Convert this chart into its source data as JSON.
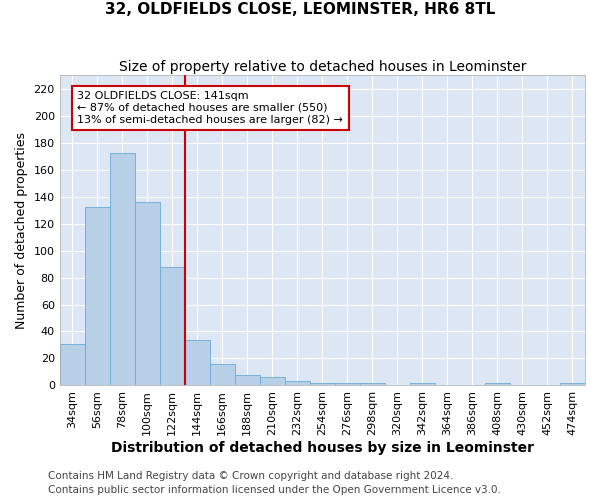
{
  "title_line1": "32, OLDFIELDS CLOSE, LEOMINSTER, HR6 8TL",
  "title_line2": "Size of property relative to detached houses in Leominster",
  "xlabel": "Distribution of detached houses by size in Leominster",
  "ylabel": "Number of detached properties",
  "categories": [
    "34sqm",
    "56sqm",
    "78sqm",
    "100sqm",
    "122sqm",
    "144sqm",
    "166sqm",
    "188sqm",
    "210sqm",
    "232sqm",
    "254sqm",
    "276sqm",
    "298sqm",
    "320sqm",
    "342sqm",
    "364sqm",
    "386sqm",
    "408sqm",
    "430sqm",
    "452sqm",
    "474sqm"
  ],
  "values": [
    31,
    132,
    172,
    136,
    88,
    34,
    16,
    8,
    6,
    3,
    2,
    2,
    2,
    0,
    2,
    0,
    0,
    2,
    0,
    0,
    2
  ],
  "bar_color": "#b8cfe8",
  "bar_edge_color": "#6aaad4",
  "reference_line_color": "#cc0000",
  "annotation_text": "32 OLDFIELDS CLOSE: 141sqm\n← 87% of detached houses are smaller (550)\n13% of semi-detached houses are larger (82) →",
  "annotation_box_color": "#cc0000",
  "ylim": [
    0,
    230
  ],
  "yticks": [
    0,
    20,
    40,
    60,
    80,
    100,
    120,
    140,
    160,
    180,
    200,
    220
  ],
  "footer_line1": "Contains HM Land Registry data © Crown copyright and database right 2024.",
  "footer_line2": "Contains public sector information licensed under the Open Government Licence v3.0.",
  "plot_bg_color": "#dce6f5",
  "fig_bg_color": "#ffffff",
  "title1_fontsize": 11,
  "title2_fontsize": 10,
  "xlabel_fontsize": 10,
  "ylabel_fontsize": 9,
  "tick_fontsize": 8,
  "annot_fontsize": 8,
  "footer_fontsize": 7.5
}
